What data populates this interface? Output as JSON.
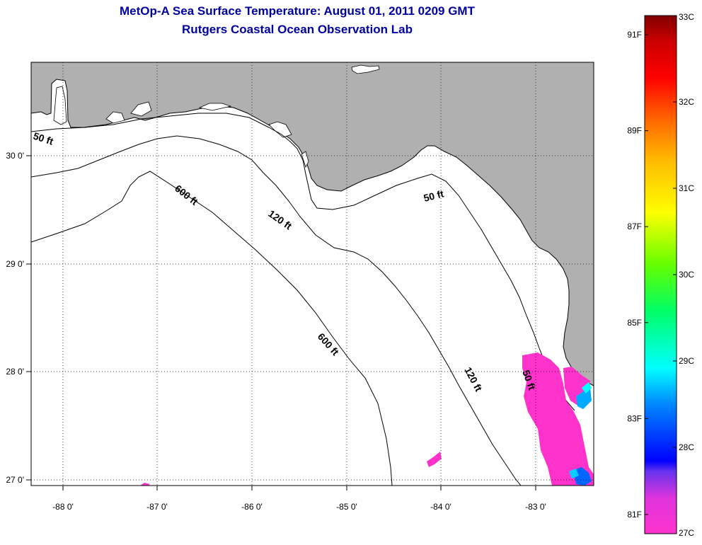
{
  "title": {
    "line1": "MetOp-A Sea Surface Temperature:  August 01, 2011 0209 GMT",
    "line2": "Rutgers Coastal Ocean Observation Lab"
  },
  "map": {
    "lon_range": [
      -88.35,
      -82.35
    ],
    "lat_range": [
      26.93,
      30.85
    ],
    "land_color": "#b0b0b0",
    "water_color": "#ffffff",
    "lon_ticks": [
      {
        "value": -88,
        "label": "-88 0'"
      },
      {
        "value": -87,
        "label": "-87 0'"
      },
      {
        "value": -86,
        "label": "-86 0'"
      },
      {
        "value": -85,
        "label": "-85 0'"
      },
      {
        "value": -84,
        "label": "-84 0'"
      },
      {
        "value": -83,
        "label": "-83 0'"
      }
    ],
    "lat_ticks": [
      {
        "value": 30,
        "label": "30 0'"
      },
      {
        "value": 29,
        "label": "29 0'"
      },
      {
        "value": 28,
        "label": "28 0'"
      },
      {
        "value": 27,
        "label": "27 0'"
      }
    ],
    "isobath_labels": [
      "50 ft",
      "120 ft",
      "600 ft",
      "600 ft",
      "120 ft",
      "50 ft",
      "50 ft"
    ]
  },
  "colorbar": {
    "celsius": [
      {
        "value": 33,
        "label": "33C"
      },
      {
        "value": 32,
        "label": "32C"
      },
      {
        "value": 31,
        "label": "31C"
      },
      {
        "value": 30,
        "label": "30C"
      },
      {
        "value": 29,
        "label": "29C"
      },
      {
        "value": 28,
        "label": "28C"
      },
      {
        "value": 27,
        "label": "27C"
      }
    ],
    "fahrenheit": [
      {
        "value": 91,
        "label": "91F"
      },
      {
        "value": 89,
        "label": "89F"
      },
      {
        "value": 87,
        "label": "87F"
      },
      {
        "value": 85,
        "label": "85F"
      },
      {
        "value": 83,
        "label": "83F"
      },
      {
        "value": 81,
        "label": "81F"
      }
    ],
    "colors": [
      "#ff33cc",
      "#cc33e6",
      "#0000ff",
      "#00aaff",
      "#00ffff",
      "#00ff66",
      "#66ff00",
      "#ffff00",
      "#ffbb00",
      "#ff6600",
      "#ff0000",
      "#cc0000",
      "#800000"
    ]
  }
}
